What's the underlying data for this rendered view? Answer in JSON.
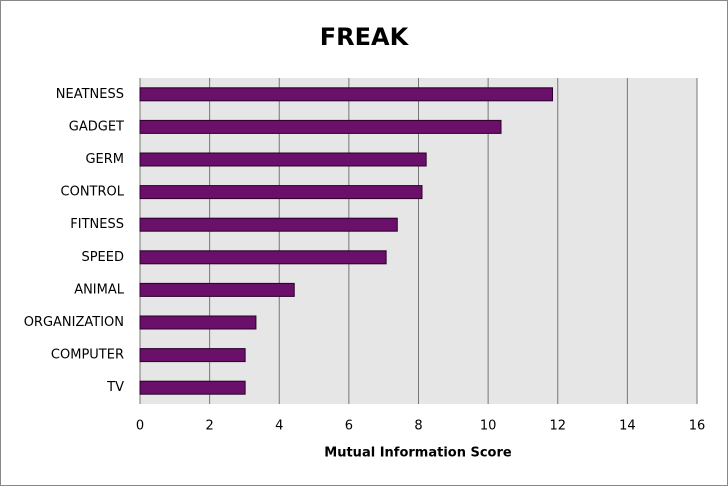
{
  "chart_data": {
    "type": "hbar",
    "title": "FREAK",
    "x_label": "Mutual Information Score",
    "categories": [
      "NEATNESS",
      "GADGET",
      "GERM",
      "CONTROL",
      "FITNESS",
      "SPEED",
      "ANIMAL",
      "ORGANIZATION",
      "COMPUTER",
      "TV"
    ],
    "values": [
      11.85,
      10.37,
      8.22,
      8.1,
      7.39,
      7.07,
      4.43,
      3.33,
      3.02,
      3.02
    ],
    "color": "#6a0f6a",
    "xlim": [
      0,
      16
    ],
    "xticks": [
      0,
      2,
      4,
      6,
      8,
      10,
      12,
      14,
      16
    ],
    "grid": true
  }
}
